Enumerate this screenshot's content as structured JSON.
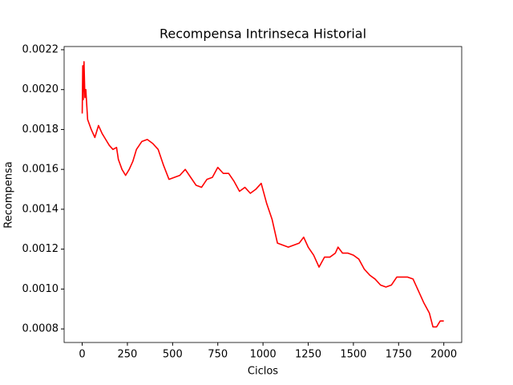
{
  "chart_data": {
    "type": "line",
    "title": "Recompensa Intrinseca Historial",
    "xlabel": "Ciclos",
    "ylabel": "Recompensa",
    "x": [
      0,
      3,
      6,
      10,
      15,
      20,
      30,
      50,
      70,
      90,
      110,
      130,
      150,
      170,
      190,
      200,
      220,
      240,
      260,
      280,
      300,
      330,
      360,
      390,
      420,
      450,
      480,
      510,
      540,
      570,
      600,
      630,
      660,
      690,
      720,
      750,
      780,
      810,
      840,
      870,
      900,
      930,
      960,
      990,
      1020,
      1050,
      1080,
      1110,
      1140,
      1170,
      1200,
      1225,
      1250,
      1280,
      1310,
      1340,
      1370,
      1400,
      1415,
      1440,
      1470,
      1500,
      1530,
      1560,
      1590,
      1620,
      1650,
      1680,
      1710,
      1740,
      1770,
      1800,
      1830,
      1860,
      1890,
      1920,
      1940,
      1960,
      1980,
      2000
    ],
    "series": [
      {
        "name": "Recompensa",
        "color": "#ff0000",
        "values": [
          0.00188,
          0.00212,
          0.00195,
          0.00214,
          0.00196,
          0.002,
          0.00185,
          0.0018,
          0.00176,
          0.00182,
          0.00178,
          0.00175,
          0.00172,
          0.0017,
          0.00171,
          0.00165,
          0.0016,
          0.00157,
          0.0016,
          0.00164,
          0.0017,
          0.00174,
          0.00175,
          0.00173,
          0.0017,
          0.00162,
          0.00155,
          0.00156,
          0.00157,
          0.0016,
          0.00156,
          0.00152,
          0.00151,
          0.00155,
          0.00156,
          0.00161,
          0.00158,
          0.00158,
          0.00154,
          0.00149,
          0.00151,
          0.00148,
          0.0015,
          0.00153,
          0.00143,
          0.00135,
          0.00123,
          0.00122,
          0.00121,
          0.00122,
          0.00123,
          0.00126,
          0.00121,
          0.00117,
          0.00111,
          0.00116,
          0.00116,
          0.00118,
          0.00121,
          0.00118,
          0.00118,
          0.00117,
          0.00115,
          0.0011,
          0.00107,
          0.00105,
          0.00102,
          0.00101,
          0.00102,
          0.00106,
          0.00106,
          0.00106,
          0.00105,
          0.00099,
          0.00093,
          0.00088,
          0.00081,
          0.00081,
          0.00084,
          0.00084
        ]
      }
    ],
    "xlim": [
      -100,
      2099
    ],
    "xticks": [
      0,
      250,
      500,
      750,
      1000,
      1250,
      1500,
      1750,
      2000
    ],
    "ylim": [
      0.000732,
      0.002216
    ],
    "yticks": [
      0.0008,
      {
        "value": 0.001,
        "label": "0.0010"
      },
      0.0012,
      0.0014,
      0.0016,
      0.0018,
      {
        "value": 0.002,
        "label": "0.0020"
      },
      0.0022
    ],
    "grid": false
  }
}
